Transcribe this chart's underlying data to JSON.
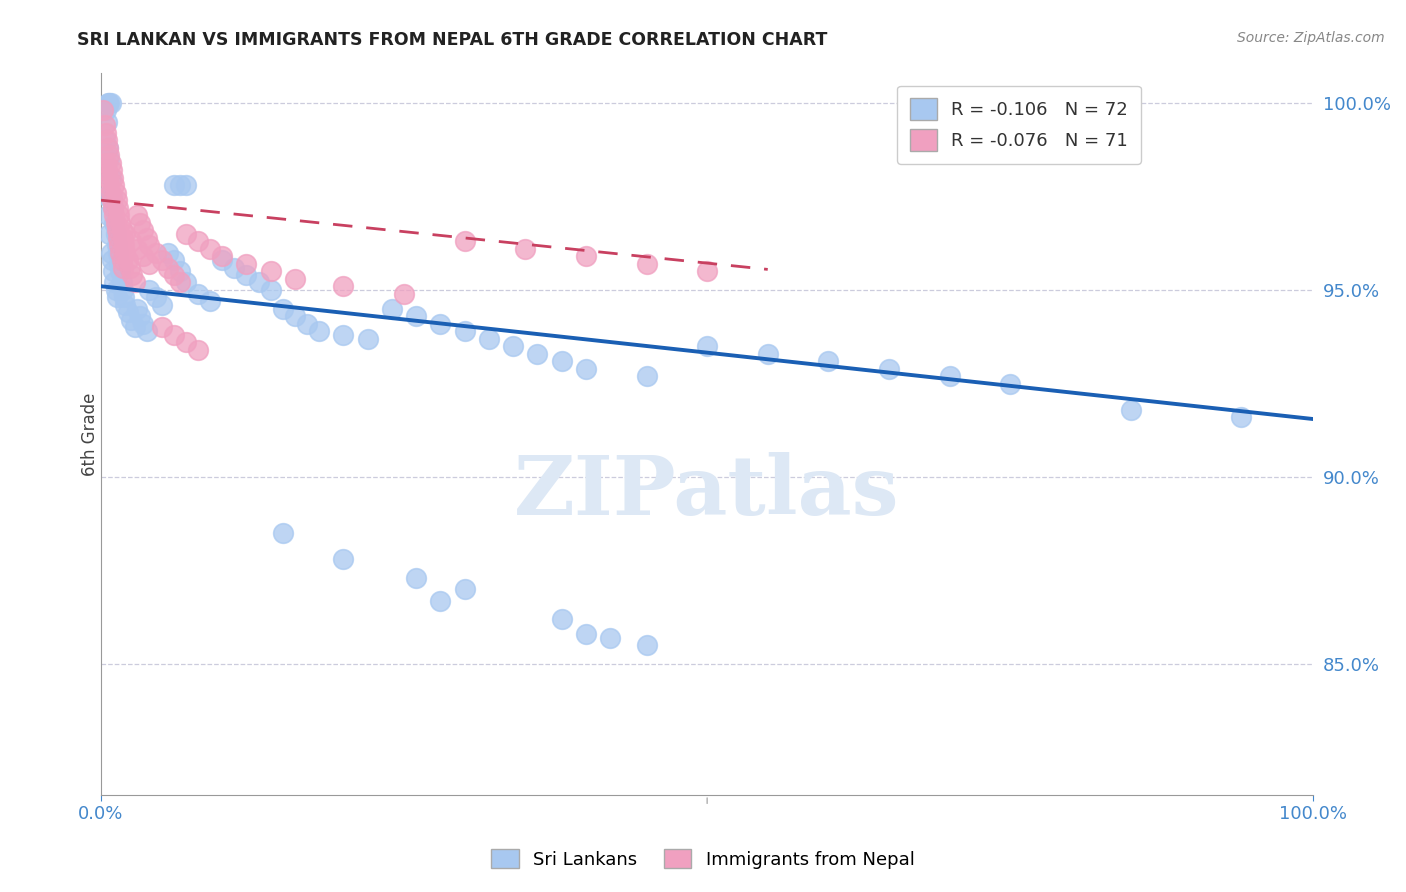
{
  "title": "SRI LANKAN VS IMMIGRANTS FROM NEPAL 6TH GRADE CORRELATION CHART",
  "source": "Source: ZipAtlas.com",
  "ylabel": "6th Grade",
  "xlim": [
    0.0,
    1.0
  ],
  "ylim": [
    0.815,
    1.008
  ],
  "yticks": [
    0.85,
    0.9,
    0.95,
    1.0
  ],
  "ytick_labels": [
    "85.0%",
    "90.0%",
    "95.0%",
    "100.0%"
  ],
  "blue_R": "-0.106",
  "blue_N": "72",
  "pink_R": "-0.076",
  "pink_N": "71",
  "blue_color": "#a8c8f0",
  "pink_color": "#f0a0c0",
  "trend_blue": "#1a5fb4",
  "trend_pink": "#c84060",
  "blue_trend_x": [
    0.0,
    1.0
  ],
  "blue_trend_y": [
    0.951,
    0.9155
  ],
  "pink_trend_x": [
    0.0,
    0.55
  ],
  "pink_trend_y": [
    0.974,
    0.9555
  ],
  "blue_scatter_x": [
    0.003,
    0.004,
    0.005,
    0.005,
    0.006,
    0.006,
    0.007,
    0.007,
    0.008,
    0.008,
    0.009,
    0.009,
    0.01,
    0.01,
    0.011,
    0.011,
    0.012,
    0.012,
    0.013,
    0.013,
    0.014,
    0.015,
    0.016,
    0.017,
    0.018,
    0.019,
    0.02,
    0.022,
    0.025,
    0.028,
    0.03,
    0.032,
    0.035,
    0.038,
    0.04,
    0.045,
    0.05,
    0.055,
    0.06,
    0.065,
    0.07,
    0.08,
    0.09,
    0.1,
    0.11,
    0.12,
    0.13,
    0.14,
    0.15,
    0.16,
    0.17,
    0.18,
    0.2,
    0.22,
    0.24,
    0.26,
    0.28,
    0.3,
    0.32,
    0.34,
    0.36,
    0.38,
    0.4,
    0.45,
    0.5,
    0.55,
    0.6,
    0.65,
    0.7,
    0.75,
    0.85,
    0.94
  ],
  "blue_scatter_y": [
    0.99,
    0.998,
    0.995,
    0.975,
    0.988,
    0.97,
    0.985,
    0.965,
    0.98,
    0.96,
    0.975,
    0.958,
    0.972,
    0.955,
    0.968,
    0.952,
    0.965,
    0.95,
    0.962,
    0.948,
    0.96,
    0.957,
    0.955,
    0.952,
    0.95,
    0.948,
    0.946,
    0.944,
    0.942,
    0.94,
    0.945,
    0.943,
    0.941,
    0.939,
    0.95,
    0.948,
    0.946,
    0.96,
    0.958,
    0.955,
    0.952,
    0.949,
    0.947,
    0.958,
    0.956,
    0.954,
    0.952,
    0.95,
    0.945,
    0.943,
    0.941,
    0.939,
    0.938,
    0.937,
    0.945,
    0.943,
    0.941,
    0.939,
    0.937,
    0.935,
    0.933,
    0.931,
    0.929,
    0.927,
    0.935,
    0.933,
    0.931,
    0.929,
    0.927,
    0.925,
    0.918,
    0.916
  ],
  "blue_scatter_x2": [
    0.006,
    0.007,
    0.008,
    0.06,
    0.065,
    0.07,
    0.15,
    0.2,
    0.3,
    0.38,
    0.4,
    0.42,
    0.45,
    0.28,
    0.26
  ],
  "blue_scatter_y2": [
    1.0,
    1.0,
    1.0,
    0.978,
    0.978,
    0.978,
    0.885,
    0.878,
    0.87,
    0.862,
    0.858,
    0.857,
    0.855,
    0.867,
    0.873
  ],
  "pink_scatter_x": [
    0.002,
    0.003,
    0.004,
    0.004,
    0.005,
    0.005,
    0.006,
    0.006,
    0.007,
    0.007,
    0.008,
    0.008,
    0.009,
    0.009,
    0.01,
    0.01,
    0.011,
    0.011,
    0.012,
    0.012,
    0.013,
    0.013,
    0.014,
    0.014,
    0.015,
    0.015,
    0.016,
    0.016,
    0.017,
    0.017,
    0.018,
    0.018,
    0.019,
    0.02,
    0.022,
    0.024,
    0.026,
    0.028,
    0.03,
    0.032,
    0.035,
    0.038,
    0.04,
    0.045,
    0.05,
    0.055,
    0.06,
    0.065,
    0.07,
    0.08,
    0.09,
    0.1,
    0.12,
    0.14,
    0.16,
    0.2,
    0.25,
    0.3,
    0.35,
    0.4,
    0.45,
    0.5,
    0.02,
    0.025,
    0.03,
    0.035,
    0.04,
    0.05,
    0.06,
    0.07,
    0.08
  ],
  "pink_scatter_y": [
    0.998,
    0.994,
    0.992,
    0.984,
    0.99,
    0.982,
    0.988,
    0.98,
    0.986,
    0.978,
    0.984,
    0.976,
    0.982,
    0.974,
    0.98,
    0.972,
    0.978,
    0.97,
    0.976,
    0.968,
    0.974,
    0.966,
    0.972,
    0.964,
    0.97,
    0.962,
    0.968,
    0.96,
    0.966,
    0.958,
    0.964,
    0.956,
    0.962,
    0.96,
    0.958,
    0.956,
    0.954,
    0.952,
    0.97,
    0.968,
    0.966,
    0.964,
    0.962,
    0.96,
    0.958,
    0.956,
    0.954,
    0.952,
    0.965,
    0.963,
    0.961,
    0.959,
    0.957,
    0.955,
    0.953,
    0.951,
    0.949,
    0.963,
    0.961,
    0.959,
    0.957,
    0.955,
    0.965,
    0.963,
    0.961,
    0.959,
    0.957,
    0.94,
    0.938,
    0.936,
    0.934
  ]
}
